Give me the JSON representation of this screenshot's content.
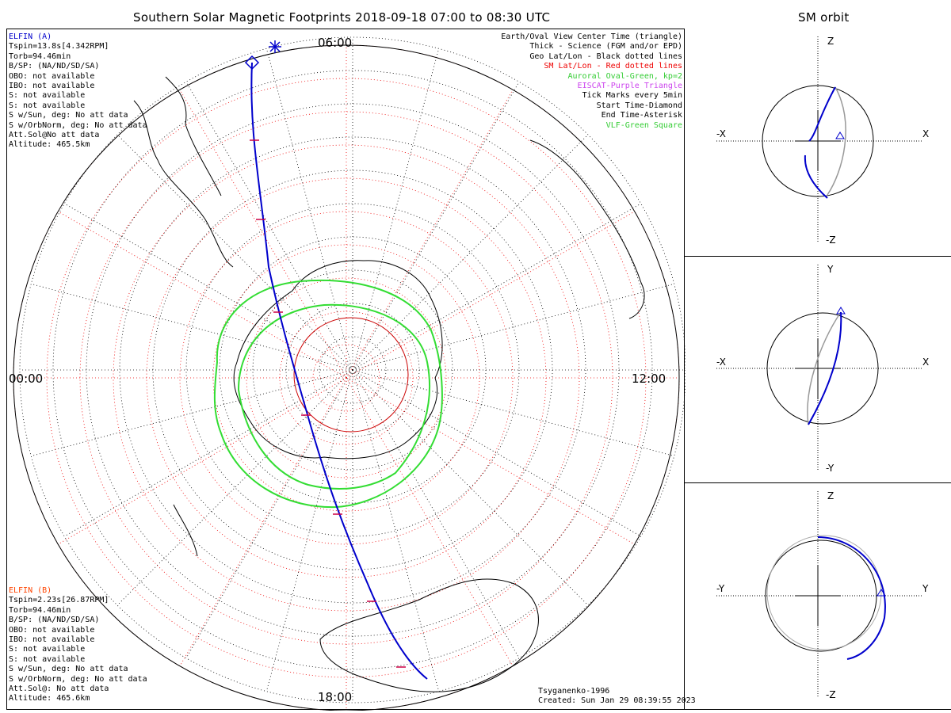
{
  "title": "Southern Solar Magnetic Footprints 2018-09-18 07:00 to 08:30 UTC",
  "orbit_title": "SM orbit",
  "clock_labels": {
    "top": "06:00",
    "left": "00:00",
    "right": "12:00",
    "bottom": "18:00"
  },
  "elfin_a": {
    "name": "ELFIN (A)",
    "color": "#0000cc",
    "lines": [
      "Tspin=13.8s[4.342RPM]",
      "Torb=94.46min",
      "B/SP: (NA/ND/SD/SA)",
      "OBO: not available",
      "IBO: not available",
      "S: not available",
      "S: not available",
      "S w/Sun, deg: No att data",
      "S w/OrbNorm, deg: No att data",
      "Att.Sol@No att data",
      "Altitude: 465.5km"
    ]
  },
  "elfin_b": {
    "name": "ELFIN (B)",
    "color": "#ff4400",
    "lines": [
      "Tspin=2.23s[26.87RPM]",
      "Torb=94.46min",
      "B/SP: (NA/ND/SD/SA)",
      "OBO: not available",
      "IBO: not available",
      "S: not available",
      "S: not available",
      "S w/Sun, deg: No att data",
      "S w/OrbNorm, deg: No att data",
      "Att.Sol@: No att data",
      "Altitude: 465.6km"
    ]
  },
  "legend": [
    {
      "text": "Earth/Oval View Center Time (triangle)",
      "color": "#000000"
    },
    {
      "text": "Thick - Science (FGM and/or EPD)",
      "color": "#000000"
    },
    {
      "text": "Geo Lat/Lon - Black dotted lines",
      "color": "#000000"
    },
    {
      "text": "SM Lat/Lon - Red dotted lines",
      "color": "#ee0000"
    },
    {
      "text": "Auroral Oval-Green, kp=2",
      "color": "#33cc33"
    },
    {
      "text": "EISCAT-Purple Triangle",
      "color": "#cc44ee"
    },
    {
      "text": "Tick Marks every 5min",
      "color": "#000000"
    },
    {
      "text": "Start Time-Diamond",
      "color": "#000000"
    },
    {
      "text": "End Time-Asterisk",
      "color": "#000000"
    },
    {
      "text": "VLF-Green Square",
      "color": "#33cc33"
    }
  ],
  "footer": {
    "model": "Tsyganenko-1996",
    "created": "Created: Sun Jan 29 08:39:55 2023"
  },
  "orbit_panels": [
    {
      "top": "Z",
      "bottom": "-Z",
      "left": "-X",
      "right": "X"
    },
    {
      "top": "Y",
      "bottom": "-Y",
      "left": "-X",
      "right": "X"
    },
    {
      "top": "Z",
      "bottom": "-Z",
      "left": "-Y",
      "right": "Y"
    }
  ],
  "colors": {
    "track": "#0000cc",
    "oval": "#33dd33",
    "sm_grid": "#ee0000",
    "geo_grid": "#000000",
    "ticks": "#cc0044"
  }
}
